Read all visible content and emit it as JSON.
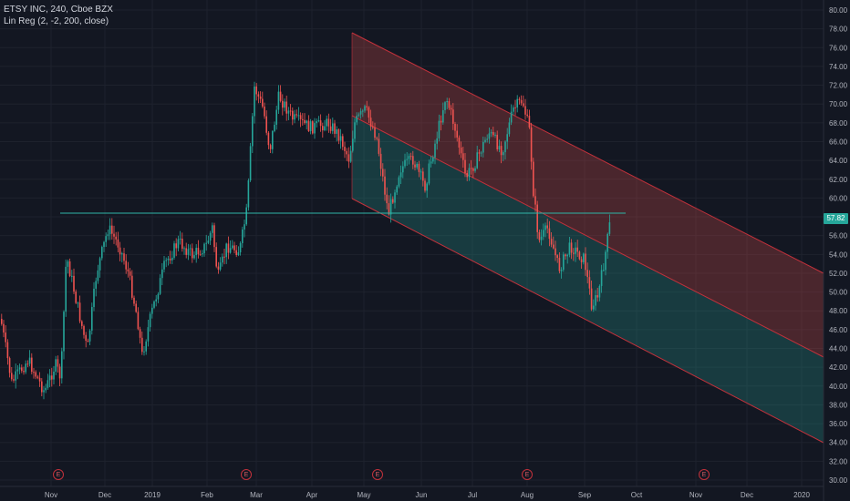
{
  "legend": {
    "symbol": "ETSY INC, 240, Cboe BZX",
    "indicator": "Lin Reg (2, -2, 200, close)"
  },
  "price_axis": {
    "ticks": [
      "80.00",
      "78.00",
      "76.00",
      "74.00",
      "72.00",
      "70.00",
      "68.00",
      "66.00",
      "64.00",
      "62.00",
      "60.00",
      "58.00",
      "56.00",
      "54.00",
      "52.00",
      "50.00",
      "48.00",
      "46.00",
      "44.00",
      "42.00",
      "40.00",
      "38.00",
      "36.00",
      "34.00",
      "32.00",
      "30.00"
    ],
    "last_price": "57.82",
    "last_price_color": "#26a69a"
  },
  "time_axis": {
    "labels": [
      "Nov",
      "Dec",
      "2019",
      "Feb",
      "Mar",
      "Apr",
      "May",
      "Jun",
      "Jul",
      "Aug",
      "Sep",
      "Oct",
      "Nov",
      "Dec",
      "2020"
    ]
  },
  "earnings_marker": "E",
  "colors": {
    "background": "#131722",
    "up": "#26a69a",
    "down": "#ef5350",
    "upper_channel": "#5a1f27",
    "lower_channel": "#1c4a38",
    "level_line": "#2fb5a8"
  }
}
